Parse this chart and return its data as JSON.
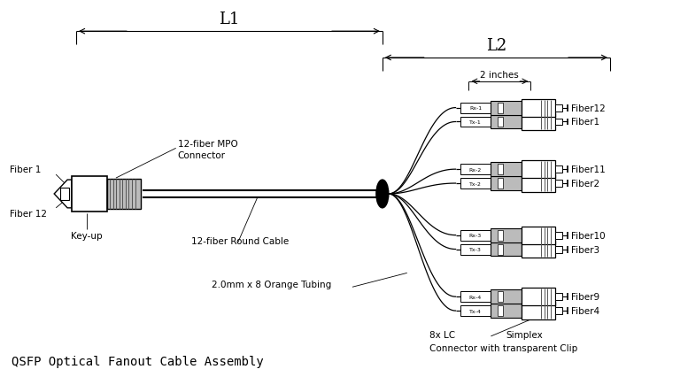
{
  "title": "QSFP Optical Fanout Cable Assembly",
  "bg_color": "#ffffff",
  "line_color": "#000000",
  "gray_color": "#888888",
  "light_gray": "#bbbbbb",
  "dark_gray": "#555555",
  "L1_label": "L1",
  "L2_label": "L2",
  "two_inches_label": "2 inches",
  "fiber1_label": "Fiber1",
  "fiber12_label": "Fiber12",
  "fiber2_label": "Fiber2",
  "fiber11_label": "Fiber11",
  "fiber3_label": "Fiber3",
  "fiber10_label": "Fiber10",
  "fiber4_label": "Fiber4",
  "fiber9_label": "Fiber9",
  "fiber1_top_label": "Fiber 1",
  "fiber12_top_label": "Fiber 12",
  "keyup_label": "Key-up",
  "mpo_label": "12-fiber MPO\nConnector",
  "round_cable_label": "12-fiber Round Cable",
  "orange_tubing_label": "2.0mm x 8 Orange Tubing",
  "lc_connector_label": "8x LC",
  "simplex_label": "Simplex",
  "clip_label": "Connector with transparent Clip",
  "fig_width": 7.77,
  "fig_height": 4.27,
  "dpi": 100
}
